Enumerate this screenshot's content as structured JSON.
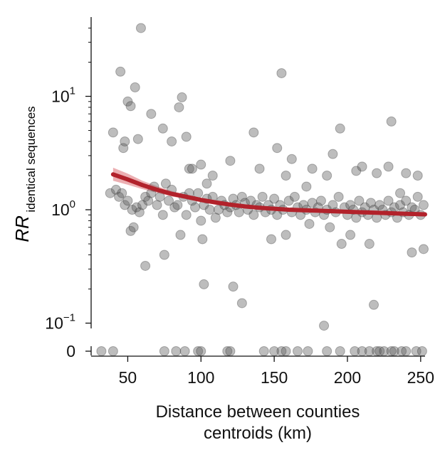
{
  "chart_data": {
    "type": "scatter",
    "xlabel_line1": "Distance between counties",
    "xlabel_line2": "centroids (km)",
    "ylabel_main": "RR",
    "ylabel_sub": "identical sequences",
    "x_ticks": [
      50,
      100,
      150,
      200,
      250
    ],
    "xlim": [
      25,
      253
    ],
    "y_scale": "log",
    "ylim": [
      0.08,
      50
    ],
    "y_ticks": [
      {
        "value": 0.1,
        "base": "10",
        "exp": "−1"
      },
      {
        "value": 1,
        "base": "10",
        "exp": "0"
      },
      {
        "value": 10,
        "base": "10",
        "exp": "1"
      }
    ],
    "zero_tick_label": "0",
    "grid": false,
    "colors": {
      "points": "#5a5a5a",
      "fit": "#b2222b",
      "band": "#e07a7f",
      "axis": "#111111"
    },
    "points": [
      [
        40,
        4.8
      ],
      [
        45,
        16.5
      ],
      [
        47,
        3.5
      ],
      [
        48,
        4
      ],
      [
        50,
        9
      ],
      [
        52,
        8.2
      ],
      [
        55,
        12
      ],
      [
        57,
        4.2
      ],
      [
        59,
        40
      ],
      [
        62,
        0.32
      ],
      [
        66,
        7
      ],
      [
        74,
        5.2
      ],
      [
        75,
        0.4
      ],
      [
        80,
        4
      ],
      [
        85,
        8
      ],
      [
        87,
        9.8
      ],
      [
        90,
        4.4
      ],
      [
        92,
        2.3
      ],
      [
        94,
        2.3
      ],
      [
        100,
        2.5
      ],
      [
        101,
        0.55
      ],
      [
        102,
        0.22
      ],
      [
        104,
        1.7
      ],
      [
        108,
        2
      ],
      [
        120,
        2.7
      ],
      [
        122,
        0.21
      ],
      [
        128,
        0.15
      ],
      [
        136,
        4.8
      ],
      [
        140,
        2.3
      ],
      [
        148,
        0.55
      ],
      [
        152,
        3.5
      ],
      [
        155,
        16
      ],
      [
        158,
        2
      ],
      [
        162,
        2.8
      ],
      [
        172,
        1.6
      ],
      [
        176,
        2.3
      ],
      [
        184,
        0.095
      ],
      [
        186,
        2
      ],
      [
        190,
        3.1
      ],
      [
        195,
        5.2
      ],
      [
        202,
        0.6
      ],
      [
        206,
        2.2
      ],
      [
        210,
        2.4
      ],
      [
        215,
        0.5
      ],
      [
        218,
        0.145
      ],
      [
        220,
        2.1
      ],
      [
        228,
        2.4
      ],
      [
        230,
        6
      ],
      [
        236,
        1.4
      ],
      [
        240,
        2.1
      ],
      [
        244,
        0.42
      ],
      [
        248,
        2
      ],
      [
        252,
        0.45
      ],
      [
        38,
        1.4
      ],
      [
        42,
        1.5
      ],
      [
        44,
        1.3
      ],
      [
        46,
        1.4
      ],
      [
        48,
        1.1
      ],
      [
        50,
        1.2
      ],
      [
        52,
        0.65
      ],
      [
        53,
        1
      ],
      [
        54,
        0.7
      ],
      [
        56,
        1.05
      ],
      [
        58,
        0.95
      ],
      [
        60,
        1.1
      ],
      [
        62,
        1.3
      ],
      [
        64,
        1.2
      ],
      [
        66,
        1.4
      ],
      [
        68,
        1.6
      ],
      [
        70,
        1.1
      ],
      [
        72,
        1.3
      ],
      [
        74,
        0.9
      ],
      [
        76,
        1.7
      ],
      [
        78,
        1.2
      ],
      [
        80,
        1.5
      ],
      [
        82,
        1.05
      ],
      [
        84,
        1.1
      ],
      [
        86,
        0.6
      ],
      [
        88,
        1.3
      ],
      [
        90,
        0.9
      ],
      [
        92,
        1.4
      ],
      [
        94,
        1.2
      ],
      [
        96,
        1.05
      ],
      [
        98,
        1.4
      ],
      [
        100,
        0.8
      ],
      [
        102,
        1.1
      ],
      [
        104,
        1.25
      ],
      [
        106,
        1
      ],
      [
        108,
        1.3
      ],
      [
        110,
        0.85
      ],
      [
        112,
        1
      ],
      [
        114,
        1.2
      ],
      [
        116,
        1.1
      ],
      [
        118,
        0.95
      ],
      [
        120,
        1.05
      ],
      [
        122,
        1.25
      ],
      [
        124,
        1.1
      ],
      [
        126,
        0.95
      ],
      [
        128,
        1.3
      ],
      [
        130,
        1.15
      ],
      [
        132,
        1
      ],
      [
        134,
        1.2
      ],
      [
        136,
        0.9
      ],
      [
        138,
        1.1
      ],
      [
        140,
        1.05
      ],
      [
        142,
        1.3
      ],
      [
        144,
        0.95
      ],
      [
        146,
        1.1
      ],
      [
        148,
        1
      ],
      [
        150,
        1.25
      ],
      [
        152,
        0.9
      ],
      [
        154,
        1.1
      ],
      [
        156,
        1
      ],
      [
        158,
        0.6
      ],
      [
        160,
        1.2
      ],
      [
        162,
        0.95
      ],
      [
        164,
        1.3
      ],
      [
        166,
        1.05
      ],
      [
        168,
        0.9
      ],
      [
        170,
        1.1
      ],
      [
        172,
        1
      ],
      [
        174,
        0.75
      ],
      [
        176,
        1.15
      ],
      [
        178,
        0.95
      ],
      [
        180,
        1.05
      ],
      [
        182,
        1.2
      ],
      [
        184,
        0.9
      ],
      [
        186,
        1
      ],
      [
        188,
        0.7
      ],
      [
        190,
        1.1
      ],
      [
        192,
        0.95
      ],
      [
        194,
        1.3
      ],
      [
        196,
        0.5
      ],
      [
        198,
        1.05
      ],
      [
        200,
        0.9
      ],
      [
        202,
        1.1
      ],
      [
        204,
        1
      ],
      [
        206,
        0.85
      ],
      [
        208,
        1.2
      ],
      [
        210,
        0.95
      ],
      [
        212,
        1.05
      ],
      [
        214,
        0.9
      ],
      [
        216,
        1.15
      ],
      [
        218,
        1
      ],
      [
        220,
        0.85
      ],
      [
        222,
        1.1
      ],
      [
        224,
        1
      ],
      [
        226,
        0.9
      ],
      [
        228,
        1.2
      ],
      [
        230,
        0.95
      ],
      [
        232,
        1.05
      ],
      [
        234,
        0.85
      ],
      [
        236,
        1.1
      ],
      [
        238,
        0.95
      ],
      [
        240,
        1.2
      ],
      [
        242,
        0.9
      ],
      [
        244,
        1.05
      ],
      [
        246,
        1
      ],
      [
        248,
        1.3
      ],
      [
        250,
        0.9
      ],
      [
        252,
        1.1
      ]
    ],
    "zero_points": [
      32,
      40,
      75,
      83,
      89,
      98,
      100,
      118,
      120,
      143,
      150,
      155,
      158,
      166,
      173,
      186,
      195,
      205,
      210,
      215,
      220,
      222,
      225,
      230,
      232,
      237,
      240,
      247,
      251
    ],
    "fit": {
      "x": [
        40,
        50,
        60,
        70,
        80,
        90,
        100,
        110,
        120,
        130,
        140,
        150,
        160,
        170,
        180,
        190,
        200,
        210,
        220,
        230,
        240,
        253
      ],
      "y": [
        2.05,
        1.85,
        1.65,
        1.5,
        1.38,
        1.3,
        1.22,
        1.16,
        1.11,
        1.07,
        1.04,
        1.02,
        1.0,
        0.99,
        0.98,
        0.97,
        0.96,
        0.95,
        0.94,
        0.93,
        0.92,
        0.91
      ],
      "lower": [
        1.8,
        1.66,
        1.52,
        1.41,
        1.31,
        1.24,
        1.17,
        1.12,
        1.08,
        1.04,
        1.01,
        0.99,
        0.97,
        0.96,
        0.95,
        0.94,
        0.93,
        0.92,
        0.91,
        0.9,
        0.89,
        0.87
      ],
      "upper": [
        2.35,
        2.08,
        1.8,
        1.61,
        1.46,
        1.36,
        1.27,
        1.2,
        1.14,
        1.1,
        1.07,
        1.05,
        1.03,
        1.02,
        1.01,
        1.0,
        0.99,
        0.98,
        0.97,
        0.96,
        0.95,
        0.95
      ]
    }
  }
}
